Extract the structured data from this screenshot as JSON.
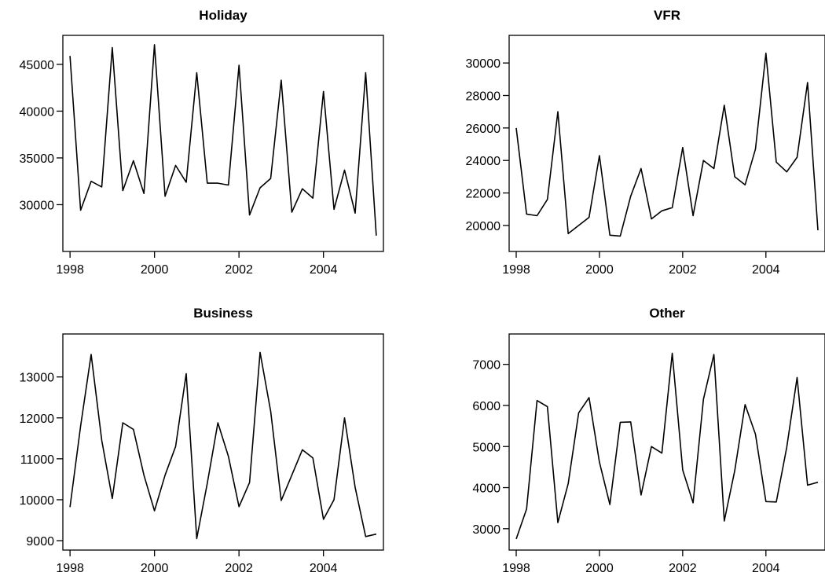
{
  "chart_data": [
    {
      "type": "line",
      "title": "Holiday",
      "xlabel": "",
      "ylabel": "",
      "x_start": 1998,
      "x_step": 0.25,
      "xticks": [
        1998,
        2000,
        2002,
        2004
      ],
      "xtick_labels": [
        "1998",
        "2000",
        "2002",
        "2004"
      ],
      "yticks": [
        30000,
        35000,
        40000,
        45000
      ],
      "ytick_labels": [
        "30000",
        "35000",
        "40000",
        "45000"
      ],
      "xlim": [
        1997.83,
        2005.42
      ],
      "ylim": [
        25000,
        48100
      ],
      "values": [
        45900,
        29400,
        32500,
        31900,
        46800,
        31500,
        34700,
        31200,
        47100,
        30900,
        34200,
        32400,
        44100,
        32300,
        32300,
        32100,
        44900,
        28900,
        31800,
        32800,
        43300,
        29200,
        31700,
        30700,
        42100,
        29500,
        33700,
        29100,
        44100,
        26700
      ]
    },
    {
      "type": "line",
      "title": "VFR",
      "xlabel": "",
      "ylabel": "",
      "x_start": 1998,
      "x_step": 0.25,
      "xticks": [
        1998,
        2000,
        2002,
        2004
      ],
      "xtick_labels": [
        "1998",
        "2000",
        "2002",
        "2004"
      ],
      "yticks": [
        20000,
        22000,
        24000,
        26000,
        28000,
        30000
      ],
      "ytick_labels": [
        "20000",
        "22000",
        "24000",
        "26000",
        "28000",
        "30000"
      ],
      "xlim": [
        1997.83,
        2005.42
      ],
      "ylim": [
        18400,
        31700
      ],
      "values": [
        26000,
        20700,
        20600,
        21600,
        27000,
        19500,
        20000,
        20500,
        24300,
        19400,
        19350,
        21800,
        23500,
        20400,
        20900,
        21100,
        24800,
        20600,
        24000,
        23500,
        27400,
        23000,
        22500,
        24700,
        30600,
        23900,
        23300,
        24200,
        28800,
        19700
      ]
    },
    {
      "type": "line",
      "title": "Business",
      "xlabel": "",
      "ylabel": "",
      "x_start": 1998,
      "x_step": 0.25,
      "xticks": [
        1998,
        2000,
        2002,
        2004
      ],
      "xtick_labels": [
        "1998",
        "2000",
        "2002",
        "2004"
      ],
      "yticks": [
        9000,
        10000,
        11000,
        12000,
        13000
      ],
      "ytick_labels": [
        "9000",
        "10000",
        "11000",
        "12000",
        "13000"
      ],
      "xlim": [
        1997.83,
        2005.42
      ],
      "ylim": [
        8770,
        14050
      ],
      "values": [
        9820,
        11800,
        13550,
        11450,
        10030,
        11880,
        11720,
        10600,
        9730,
        10600,
        11300,
        13080,
        9050,
        10400,
        11880,
        11060,
        9830,
        10420,
        13600,
        12160,
        9980,
        10600,
        11220,
        11020,
        9520,
        10000,
        12000,
        10300,
        9100,
        9160
      ]
    },
    {
      "type": "line",
      "title": "Other",
      "xlabel": "",
      "ylabel": "",
      "x_start": 1998,
      "x_step": 0.25,
      "xticks": [
        1998,
        2000,
        2002,
        2004
      ],
      "xtick_labels": [
        "1998",
        "2000",
        "2002",
        "2004"
      ],
      "yticks": [
        3000,
        4000,
        5000,
        6000,
        7000
      ],
      "ytick_labels": [
        "3000",
        "4000",
        "5000",
        "6000",
        "7000"
      ],
      "xlim": [
        1997.83,
        2005.42
      ],
      "ylim": [
        2480,
        7740
      ],
      "values": [
        2750,
        3480,
        6120,
        5970,
        3150,
        4100,
        5820,
        6190,
        4620,
        3590,
        5590,
        5600,
        3820,
        5000,
        4840,
        7270,
        4430,
        3630,
        6150,
        7240,
        3190,
        4410,
        6020,
        5300,
        3660,
        3650,
        4980,
        6680,
        4060,
        4130
      ]
    }
  ]
}
